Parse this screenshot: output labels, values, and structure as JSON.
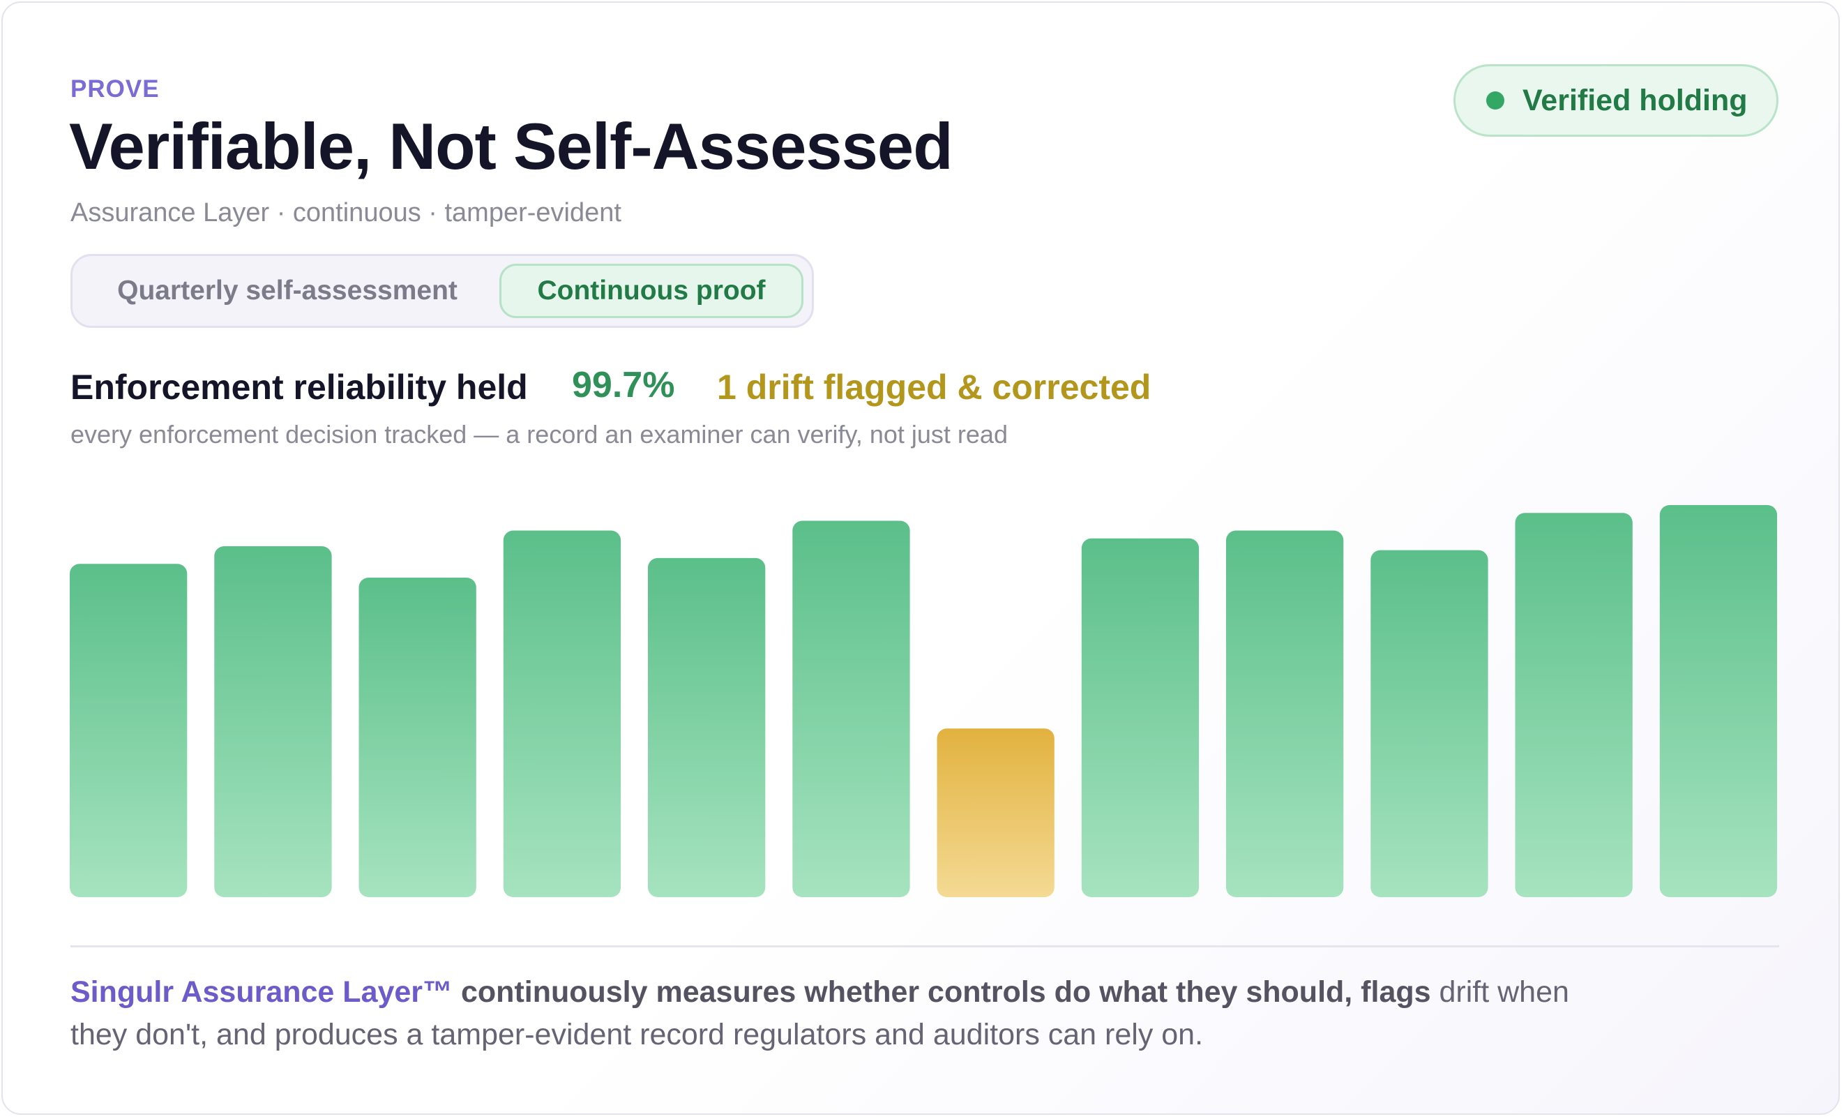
{
  "header": {
    "eyebrow": "PROVE",
    "title": "Verifiable, Not Self-Assessed",
    "subtitle": "Assurance Layer · continuous · tamper-evident"
  },
  "badge": {
    "label": "Verified holding",
    "color": "#33a865"
  },
  "toggle": {
    "options": [
      {
        "label": "Quarterly self-assessment",
        "selected": false
      },
      {
        "label": "Continuous proof",
        "selected": true
      }
    ]
  },
  "metric": {
    "label": "Enforcement reliability held",
    "value": "99.7%",
    "flag": "1 drift flagged & corrected",
    "note": "every enforcement decision tracked — a record an examiner can verify, not just read"
  },
  "chart_data": {
    "type": "bar",
    "values": [
      85,
      89.5,
      81.5,
      93.5,
      86.5,
      96,
      43,
      91.5,
      93.5,
      88.5,
      98,
      100
    ],
    "flagged": [
      false,
      false,
      false,
      false,
      false,
      false,
      true,
      false,
      false,
      false,
      false,
      false
    ],
    "ylim": [
      0,
      100
    ],
    "grid": false,
    "colors": {
      "ok_top": "#5bbf8a",
      "ok_bottom": "#a6e3bf",
      "flag_top": "#e2b23f",
      "flag_bottom": "#f4da94"
    }
  },
  "footer": {
    "brand": "Singulr Assurance Layer™",
    "lead": " continuously measures whether controls do what they should, flags",
    "rest": " drift when they don't, and produces a tamper-evident record regulators and auditors can rely on."
  }
}
